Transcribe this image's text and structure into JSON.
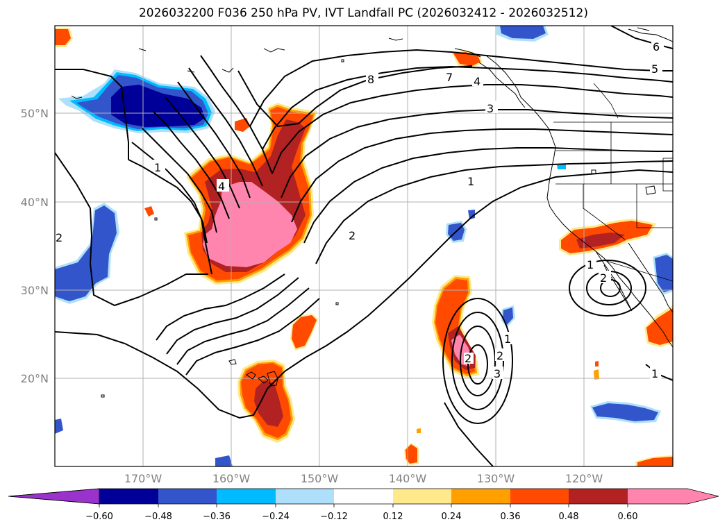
{
  "title": "2026032200 F036 250 hPa PV, IVT Landfall PC (2026032412 - 2026032512)",
  "colors": {
    "neg_060_below": "#9933cc",
    "neg_048_060": "#000099",
    "neg_036_048": "#3355cc",
    "neg_024_036": "#00bbff",
    "neg_012_024": "#aee0fb",
    "neutral": "#ffffff",
    "pos_012_024": "#ffe98a",
    "pos_024_036": "#ff9f00",
    "pos_036_048": "#ff4a00",
    "pos_048_060": "#b22222",
    "pos_060_above": "#ff85ae",
    "contour": "#000000",
    "coast": "#000000",
    "grid": "#b0b0b0"
  },
  "lat_labels": [
    "50°N",
    "40°N",
    "30°N",
    "20°N"
  ],
  "lon_labels": [
    "170°W",
    "160°W",
    "150°W",
    "140°W",
    "130°W",
    "120°W"
  ],
  "colorbar_ticks": [
    "−0.60",
    "−0.48",
    "−0.36",
    "−0.24",
    "−0.12",
    "0.12",
    "0.24",
    "0.36",
    "0.48",
    "0.60"
  ],
  "contour_labels": [
    "8",
    "7",
    "6",
    "5",
    "4",
    "3",
    "2",
    "1",
    "1",
    "2",
    "2",
    "1",
    "2",
    "3",
    "1",
    "2",
    "1",
    "4"
  ]
}
